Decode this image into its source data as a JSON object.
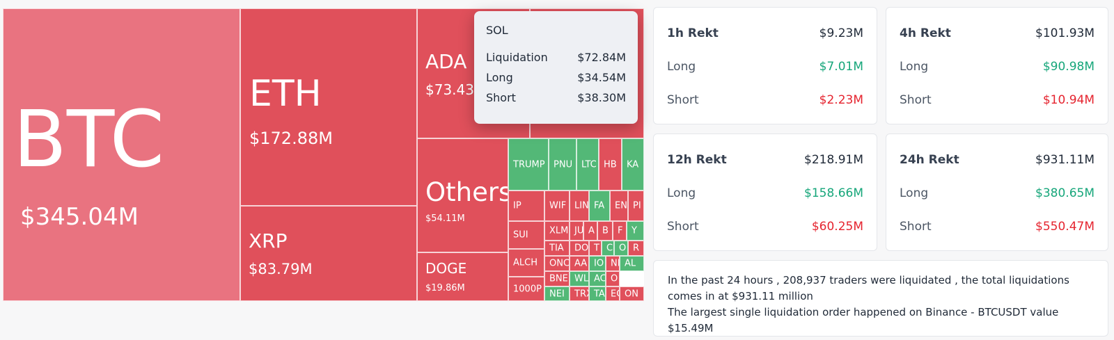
{
  "treemap": {
    "major": {
      "btc": {
        "symbol": "BTC",
        "value": "$345.04M"
      },
      "eth": {
        "symbol": "ETH",
        "value": "$172.88M"
      },
      "xrp": {
        "symbol": "XRP",
        "value": "$83.79M"
      },
      "ada": {
        "symbol": "ADA",
        "value": "$73.43"
      },
      "others": {
        "symbol": "Others",
        "value": "$54.11M"
      },
      "doge": {
        "symbol": "DOGE",
        "value": "$19.86M"
      }
    },
    "small": [
      "TRUMP",
      "PNU",
      "LTC",
      "HB",
      "KA",
      "IP",
      "WIF",
      "LIN",
      "FA",
      "EN",
      "PI",
      "SUI",
      "XLM",
      "JU",
      "A",
      "B",
      "F",
      "Y",
      "TIA",
      "DO",
      "T",
      "C",
      "O",
      "R",
      "ALCH",
      "ONC",
      "AA",
      "IO",
      "NE",
      "AL",
      "BNE",
      "WL",
      "AC",
      "O",
      "1000P",
      "NEI",
      "TRX",
      "TA",
      "EC",
      "ON"
    ]
  },
  "tooltip": {
    "title": "SOL",
    "rows": [
      {
        "label": "Liquidation",
        "value": "$72.84M"
      },
      {
        "label": "Long",
        "value": "$34.54M"
      },
      {
        "label": "Short",
        "value": "$38.30M"
      }
    ]
  },
  "cards": [
    {
      "title": "1h Rekt",
      "total": "$9.23M",
      "long_label": "Long",
      "long": "$7.01M",
      "short_label": "Short",
      "short": "$2.23M"
    },
    {
      "title": "4h Rekt",
      "total": "$101.93M",
      "long_label": "Long",
      "long": "$90.98M",
      "short_label": "Short",
      "short": "$10.94M"
    },
    {
      "title": "12h Rekt",
      "total": "$218.91M",
      "long_label": "Long",
      "long": "$158.66M",
      "short_label": "Short",
      "short": "$60.25M"
    },
    {
      "title": "24h Rekt",
      "total": "$931.11M",
      "long_label": "Long",
      "long": "$380.65M",
      "short_label": "Short",
      "short": "$550.47M"
    }
  ],
  "summary": {
    "line1": "In the past 24 hours , 208,937 traders were liquidated , the total liquidations comes in at $931.11 million",
    "line2": "The largest single liquidation order happened on Binance - BTCUSDT value $15.49M"
  },
  "colors": {
    "long": "#16a67a",
    "short": "#e5242f",
    "tile_red": "#e0505b",
    "tile_green": "#53b877"
  }
}
